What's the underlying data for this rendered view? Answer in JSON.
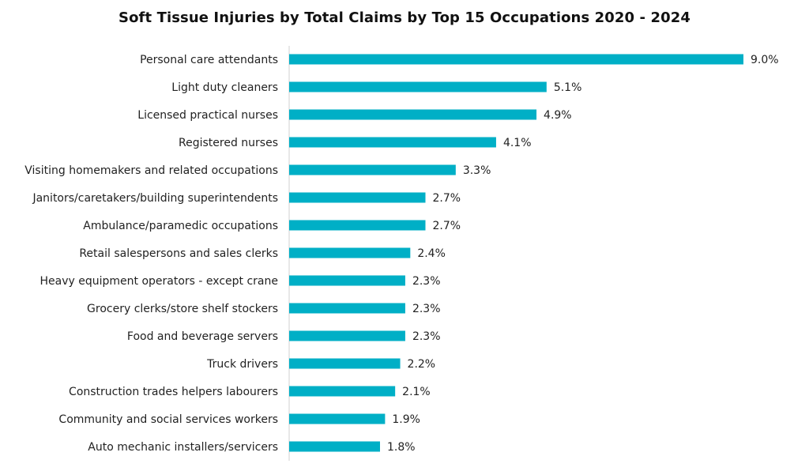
{
  "chart_data": {
    "type": "bar",
    "orientation": "horizontal",
    "title": "Soft Tissue Injuries by Total Claims by Top 15 Occupations 2020 - 2024",
    "categories": [
      "Personal care attendants",
      "Light duty cleaners",
      "Licensed practical nurses",
      "Registered nurses",
      "Visiting homemakers and related occupations",
      "Janitors/caretakers/building superintendents",
      "Ambulance/paramedic occupations",
      "Retail salespersons and sales clerks",
      "Heavy equipment operators - except crane",
      "Grocery clerks/store shelf stockers",
      "Food and beverage servers",
      "Truck drivers",
      "Construction trades helpers labourers",
      "Community and social services workers",
      "Auto mechanic installers/servicers"
    ],
    "values": [
      9.0,
      5.1,
      4.9,
      4.1,
      3.3,
      2.7,
      2.7,
      2.4,
      2.3,
      2.3,
      2.3,
      2.2,
      2.1,
      1.9,
      1.8
    ],
    "value_labels": [
      "9.0%",
      "5.1%",
      "4.9%",
      "4.1%",
      "3.3%",
      "2.7%",
      "2.7%",
      "2.4%",
      "2.3%",
      "2.3%",
      "2.3%",
      "2.2%",
      "2.1%",
      "1.9%",
      "1.8%"
    ],
    "xlabel": "",
    "ylabel": "",
    "xlim": [
      0,
      9.0
    ],
    "grid": false,
    "legend": "none",
    "bar_color": "#00afc6",
    "axis_color": "#d0d0d0"
  }
}
